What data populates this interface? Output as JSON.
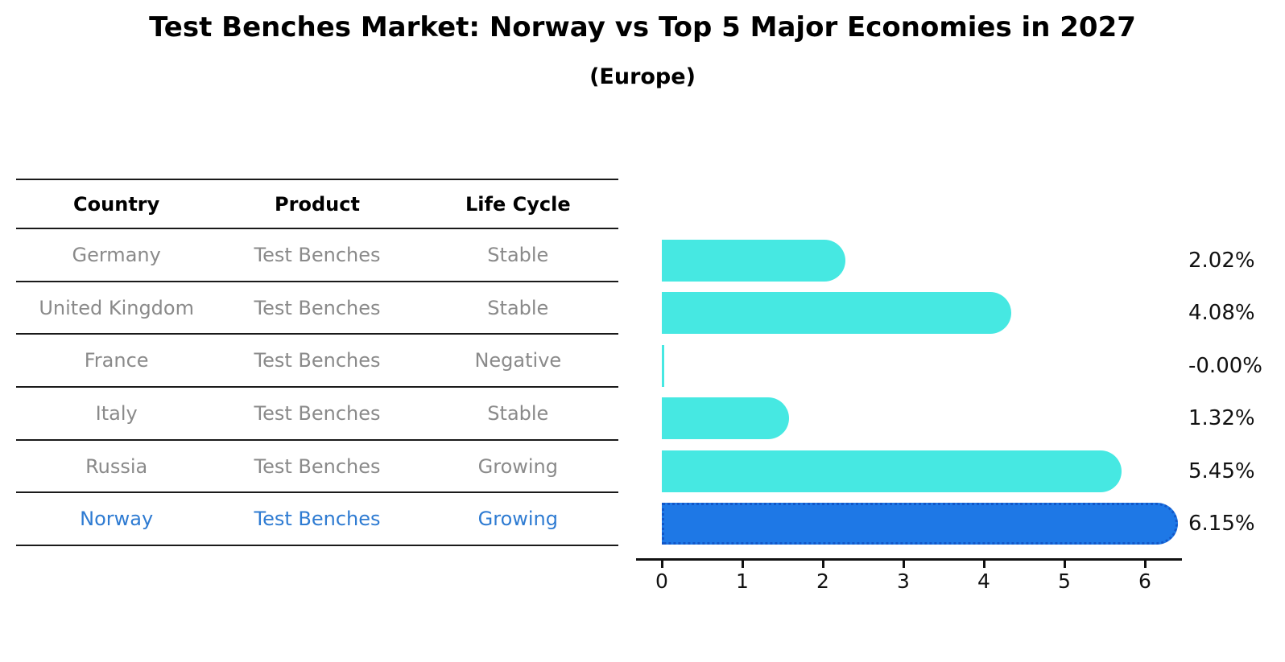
{
  "header": {
    "title": "Test Benches Market: Norway vs Top 5 Major Economies in 2027",
    "subtitle": "(Europe)"
  },
  "table": {
    "headers": [
      "Country",
      "Product",
      "Life Cycle"
    ],
    "rows": [
      {
        "country": "Germany",
        "product": "Test Benches",
        "life_cycle": "Stable",
        "highlight": false
      },
      {
        "country": "United Kingdom",
        "product": "Test Benches",
        "life_cycle": "Stable",
        "highlight": false
      },
      {
        "country": "France",
        "product": "Test Benches",
        "life_cycle": "Negative",
        "highlight": false
      },
      {
        "country": "Italy",
        "product": "Test Benches",
        "life_cycle": "Stable",
        "highlight": false
      },
      {
        "country": "Russia",
        "product": "Test Benches",
        "life_cycle": "Growing",
        "highlight": false
      },
      {
        "country": "Norway",
        "product": "Test Benches",
        "life_cycle": "Growing",
        "highlight": true
      }
    ]
  },
  "chart_data": {
    "type": "bar",
    "orientation": "horizontal",
    "title": "Test Benches Market: Norway vs Top 5 Major Economies in 2027",
    "subtitle": "(Europe)",
    "categories": [
      "Germany",
      "United Kingdom",
      "France",
      "Italy",
      "Russia",
      "Norway"
    ],
    "values": [
      2.02,
      4.08,
      -0.0,
      1.32,
      5.45,
      6.15
    ],
    "value_labels": [
      "2.02%",
      "4.08%",
      "-0.00%",
      "1.32%",
      "5.45%",
      "6.15%"
    ],
    "x_ticks": [
      "0",
      "1",
      "2",
      "3",
      "4",
      "5",
      "6"
    ],
    "xlim": [
      0,
      6.5
    ],
    "grid": false,
    "legend": false,
    "highlight_index": 5,
    "bar_color": "#46e8e2",
    "highlight_bar_color": "#1e78e6",
    "highlight_border_color": "#1257c8"
  },
  "colors": {
    "table_text": "#8a8a8a",
    "header_text": "#000000",
    "highlight_text": "#2e7bd2",
    "axis": "#111111"
  }
}
